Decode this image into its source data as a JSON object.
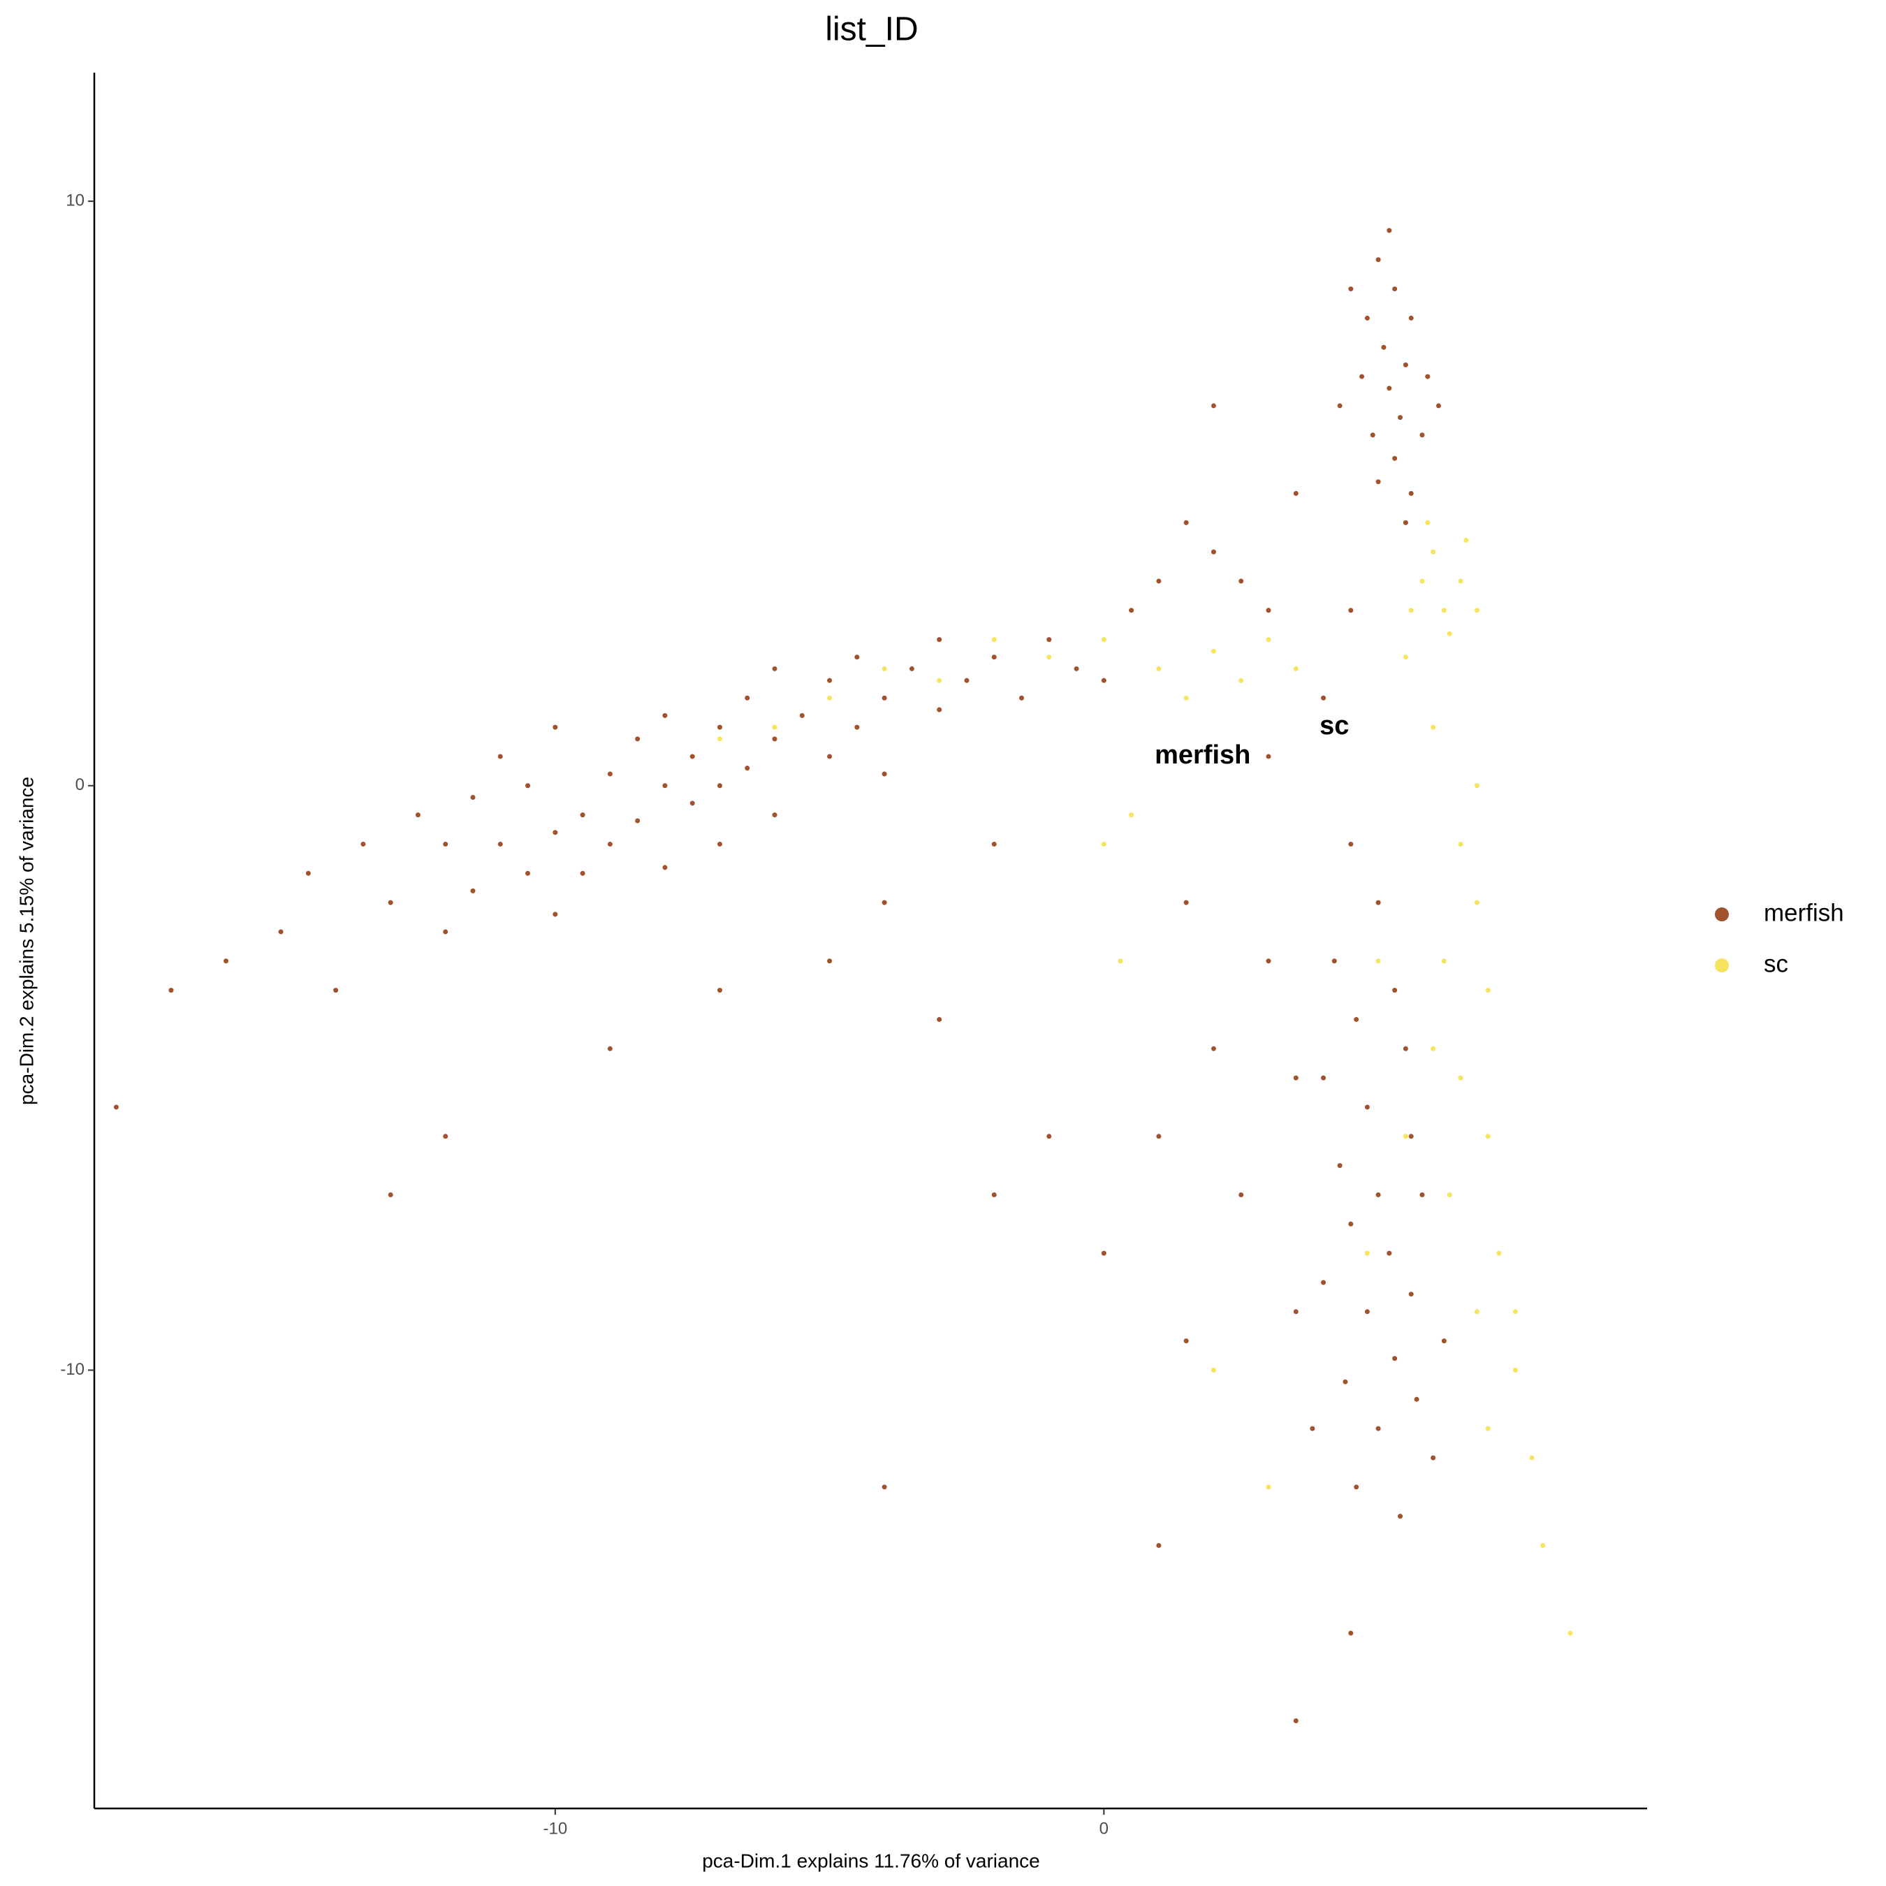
{
  "chart_data": {
    "type": "scatter",
    "title": "list_ID",
    "xlabel": "pca-Dim.1 explains 11.76% of variance",
    "ylabel": "pca-Dim.2 explains 5.15% of variance",
    "xlim": [
      -18.4,
      9.9
    ],
    "ylim": [
      -17.5,
      12.2
    ],
    "xticks": [
      -10,
      0
    ],
    "yticks": [
      -10,
      0,
      10
    ],
    "grid": false,
    "legend": "right",
    "series": [
      {
        "name": "merfish",
        "color": "#A0522D",
        "x": [
          -16,
          -15,
          -14.5,
          -14,
          -13.5,
          -13,
          -12.5,
          -12,
          -12,
          -11.5,
          -11.5,
          -11,
          -11,
          -10.5,
          -10.5,
          -10,
          -10,
          -10,
          -9.5,
          -9.5,
          -9,
          -9,
          -8.5,
          -8.5,
          -8,
          -8,
          -8,
          -7.5,
          -7.5,
          -7,
          -7,
          -7,
          -6.5,
          -6.5,
          -6,
          -6,
          -6,
          -5.5,
          -5,
          -5,
          -4.5,
          -4.5,
          -4,
          -4,
          -3.5,
          -3,
          -3,
          -2.5,
          -2,
          -1.5,
          -1,
          -0.5,
          0,
          0.5,
          1,
          1.5,
          2,
          2.5,
          3,
          5,
          5.3,
          4.8,
          5.6,
          5.1,
          5.5,
          4.7,
          5.9,
          5.2,
          5.4,
          4.9,
          5.8,
          5.3,
          5,
          5.6,
          4.5,
          6.1,
          4.3,
          5.2,
          5.5,
          4.5,
          5,
          4.2,
          5.3,
          4.6,
          5.5,
          4,
          4.8,
          5.6,
          4.3,
          5,
          5.8,
          4.5,
          5.2,
          4,
          5.6,
          4.8,
          5.3,
          4.4,
          5.7,
          5,
          4.6,
          5.4,
          6,
          3.5,
          3.8,
          6.2,
          3,
          2,
          1,
          2.5,
          0,
          1.5,
          -1,
          -3,
          -5,
          -7,
          -9,
          -2,
          3.5,
          3,
          4,
          4.5,
          3.5,
          2,
          1.5,
          -2,
          -4,
          -12,
          -13,
          -18,
          -17,
          1,
          3.5,
          4.5,
          -4
        ],
        "values": [
          -3,
          -2.5,
          -1.5,
          -3.5,
          -1,
          -2,
          -0.5,
          -2.5,
          -1,
          -0.2,
          -1.8,
          -1,
          0.5,
          -1.5,
          0,
          -0.8,
          1,
          -2.2,
          -0.5,
          -1.5,
          0.2,
          -1,
          0.8,
          -0.6,
          0,
          1.2,
          -1.4,
          0.5,
          -0.3,
          1,
          0,
          -1,
          1.5,
          0.3,
          0.8,
          2,
          -0.5,
          1.2,
          1.8,
          0.5,
          1,
          2.2,
          1.5,
          0.2,
          2,
          1.3,
          2.5,
          1.8,
          2.2,
          1.5,
          2.5,
          2,
          1.8,
          3,
          3.5,
          4.5,
          4,
          3.5,
          3,
          9,
          8.5,
          8,
          8,
          7.5,
          7.2,
          7,
          7,
          6.8,
          6.3,
          6,
          6,
          5.6,
          5.2,
          5,
          8.5,
          6.5,
          6.5,
          9.5,
          4.5,
          -1,
          -2,
          -3,
          -3.5,
          -4,
          -4.5,
          -5,
          -5.5,
          -6,
          -6.5,
          -7,
          -7,
          -7.5,
          -8,
          -8.5,
          -8.7,
          -9,
          -9.8,
          -10.2,
          -10.5,
          -11,
          -12,
          -12.5,
          -11.5,
          -9,
          -11,
          -9.5,
          -3,
          -4.5,
          -6,
          -7,
          -8,
          -9.5,
          -6,
          -4,
          -3,
          -3.5,
          -4.5,
          -7,
          -5,
          0.5,
          1.5,
          3,
          5,
          6.5,
          -2,
          -1,
          -2,
          -6,
          -7,
          -5.5,
          -3.5,
          -13,
          -16,
          -14.5,
          -12
        ]
      },
      {
        "name": "sc",
        "color": "#F8E45C",
        "x": [
          5.8,
          6.2,
          6,
          6.5,
          5.6,
          6.3,
          5.9,
          6.6,
          6.8,
          5.5,
          6.5,
          6.8,
          6.2,
          7,
          6,
          6.5,
          7,
          6.3,
          7.2,
          6.8,
          7.5,
          7,
          7.8,
          5,
          5.5,
          4.8,
          6,
          6.8,
          -5,
          -4,
          -3,
          -2,
          -1,
          0,
          1,
          1.5,
          2,
          2.5,
          3,
          3.5,
          1,
          0.5,
          0,
          0.3,
          -7,
          -6,
          8,
          8.5,
          7.5,
          3,
          2
        ],
        "values": [
          3.5,
          3,
          4,
          3.5,
          3,
          2.6,
          4.5,
          4.2,
          3,
          2.2,
          -1,
          -2,
          -3,
          -3.5,
          -4.5,
          -5,
          -6,
          -7,
          -8,
          -9,
          -10,
          -11,
          -11.5,
          -3,
          -6,
          -8,
          1,
          0,
          1.5,
          2,
          1.8,
          2.5,
          2.2,
          2.5,
          2,
          1.5,
          2.3,
          1.8,
          2.5,
          2,
          0.5,
          -0.5,
          -1,
          -3,
          0.8,
          1,
          -13,
          -14.5,
          -9,
          -12,
          -10
        ]
      }
    ],
    "annotations": [
      {
        "text": "merfish",
        "x": 1.8,
        "y": 0.5
      },
      {
        "text": "sc",
        "x": 4.2,
        "y": 1.0
      }
    ]
  }
}
